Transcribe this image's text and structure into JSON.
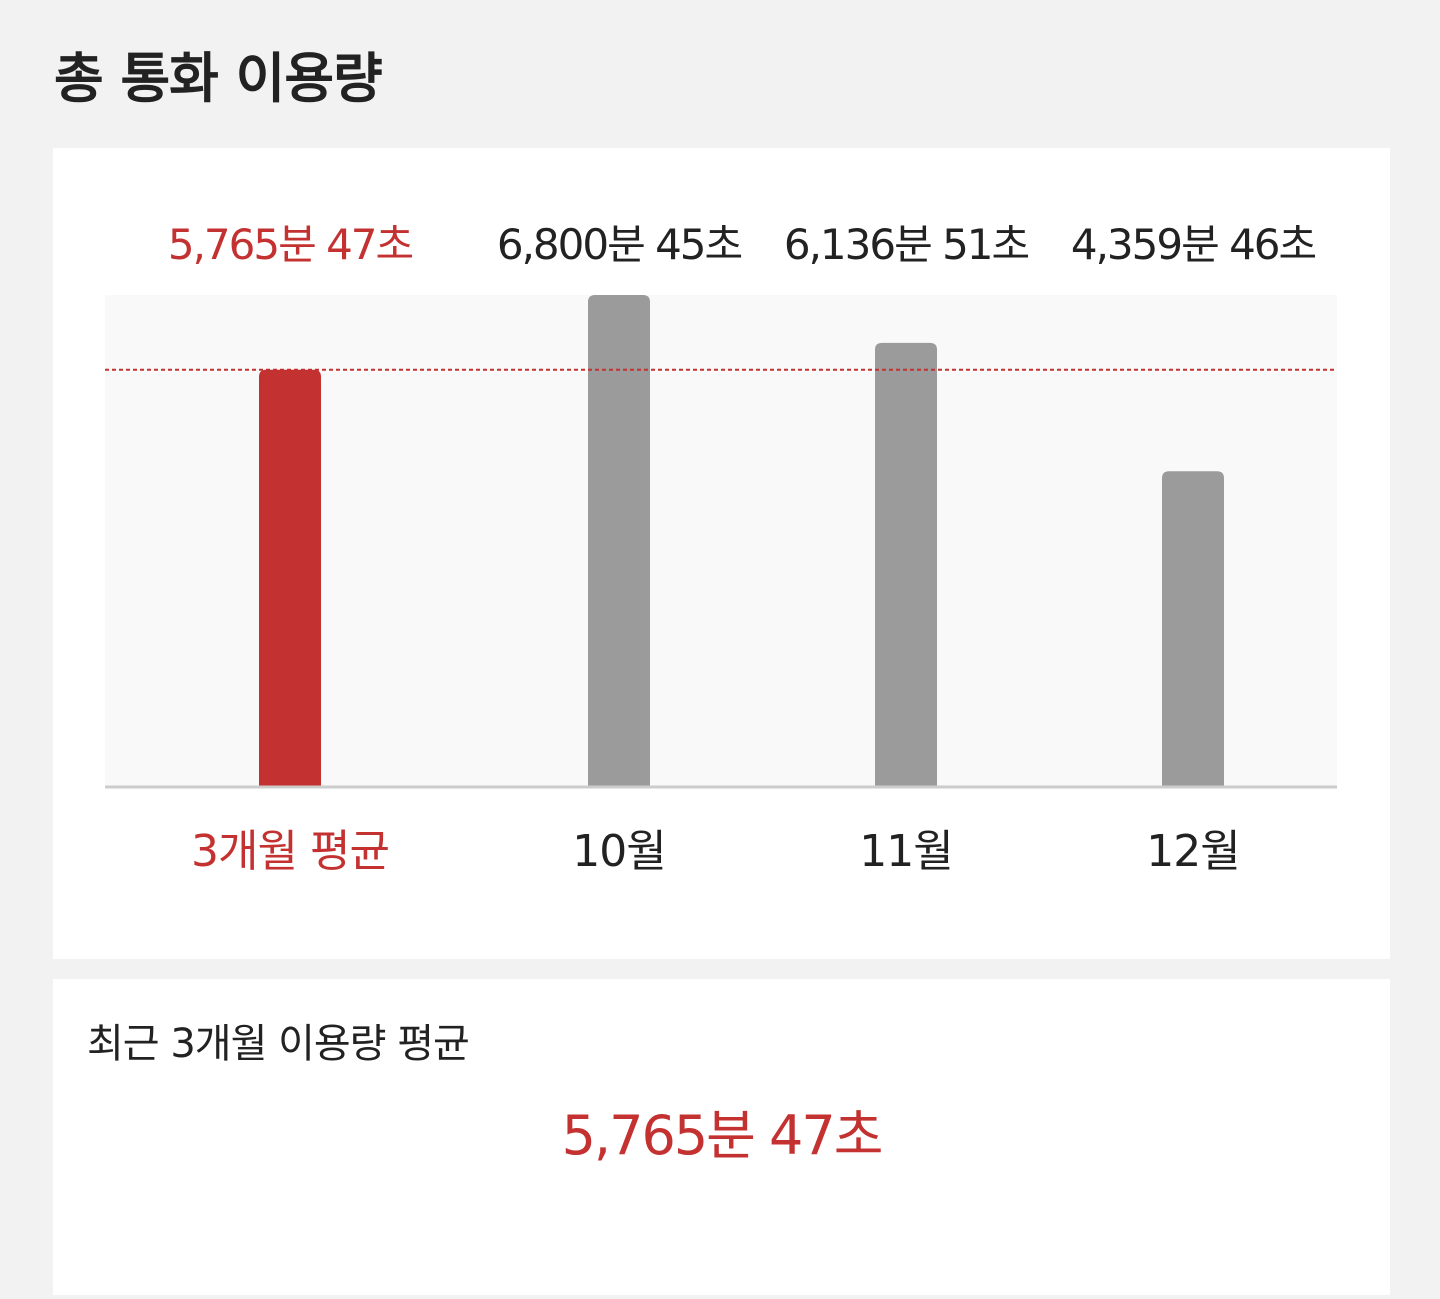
{
  "page": {
    "title": "총 통화 이용량"
  },
  "colors": {
    "accent": "#c43131",
    "bar_default": "#9b9b9b",
    "text_default": "#222222",
    "plot_bg": "#f9f9f9",
    "baseline": "#cccccc"
  },
  "chart_data": {
    "type": "bar",
    "unit": "분",
    "categories": [
      "3개월 평균",
      "10월",
      "11월",
      "12월"
    ],
    "values": [
      5765.78,
      6800.75,
      6136.85,
      4359.77
    ],
    "value_labels": [
      "5,765분 47초",
      "6,800분 45초",
      "6,136분 51초",
      "4,359분 46초"
    ],
    "highlight_index": 0,
    "reference_line": {
      "value": 5765.78,
      "style": "dashed"
    },
    "ylim": [
      0,
      6800.75
    ],
    "grid": false,
    "legend": "none",
    "title": "",
    "xlabel": "",
    "ylabel": ""
  },
  "summary": {
    "title": "최근 3개월 이용량 평균",
    "value": "5,765분 47초"
  }
}
